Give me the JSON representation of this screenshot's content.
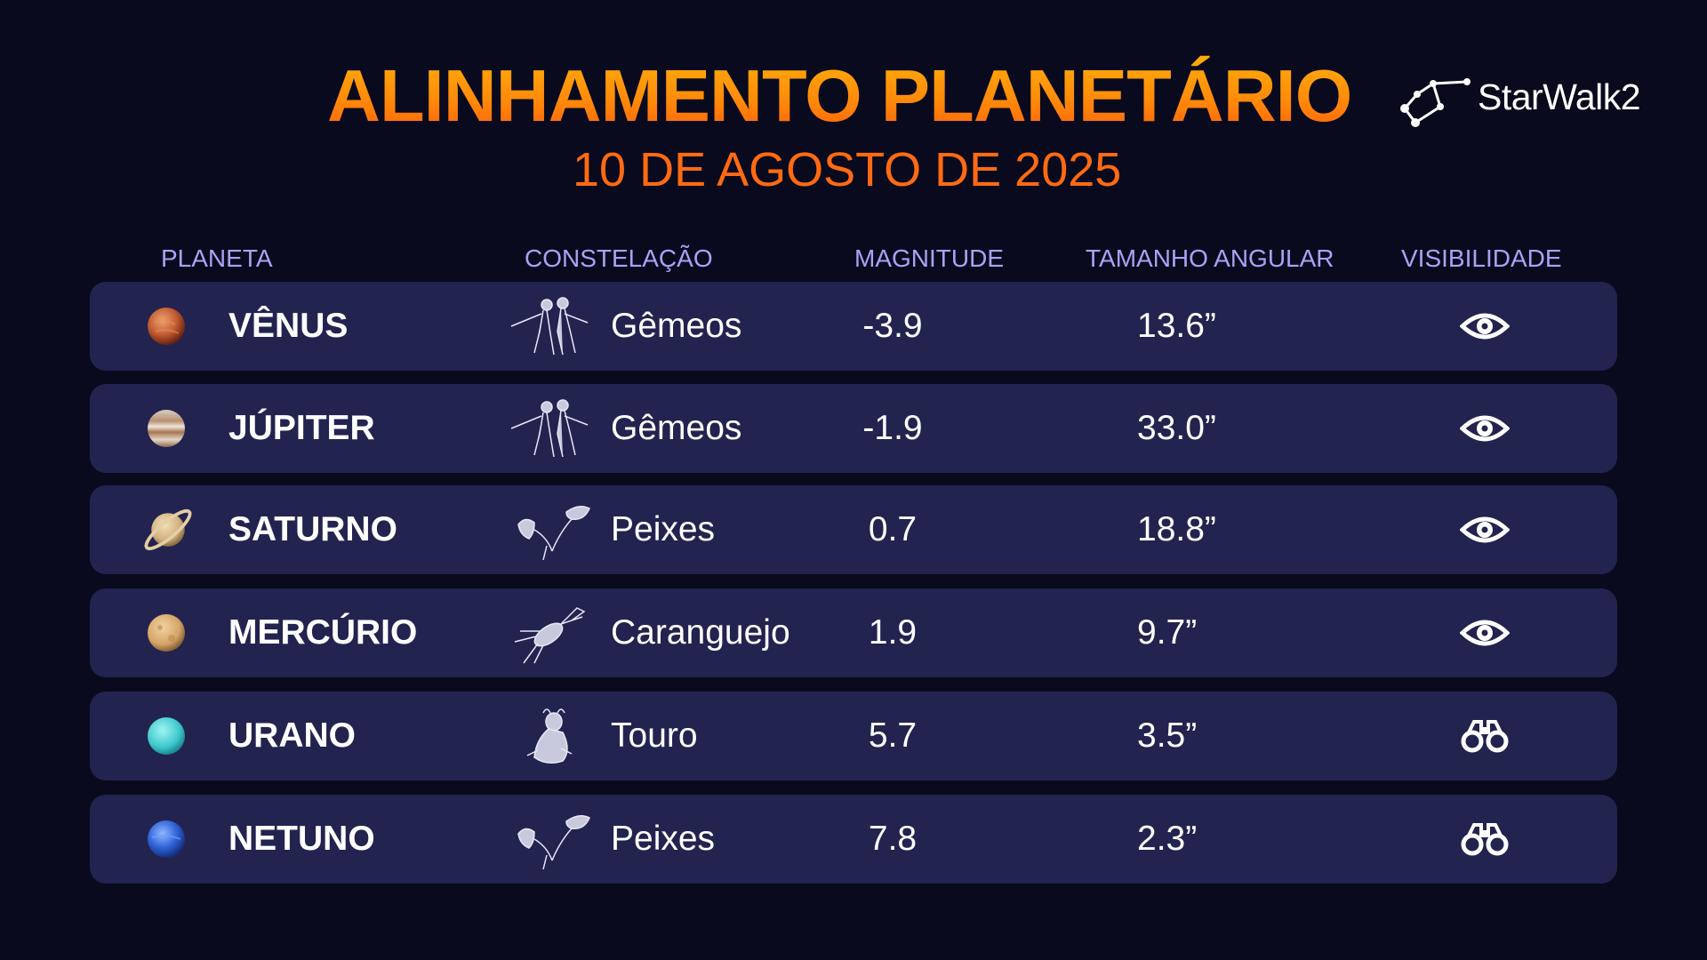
{
  "header": {
    "title": "ALINHAMENTO PLANETÁRIO",
    "subtitle": "10 DE AGOSTO DE 2025",
    "logo_text": "StarWalk2",
    "logo_icon": "constellation-icon"
  },
  "colors": {
    "background": "#0a0a1e",
    "row_background": "#232350",
    "title_orange": "#ff8a0a",
    "header_lavender": "#a8a3f5"
  },
  "table": {
    "columns": [
      "PLANETA",
      "CONSTELAÇÃO",
      "MAGNITUDE",
      "TAMANHO ANGULAR",
      "VISIBILIDADE"
    ],
    "rows": [
      {
        "planet": "VÊNUS",
        "planet_icon": "venus-icon",
        "constellation": "Gêmeos",
        "constellation_icon": "gemini-icon",
        "magnitude": "-3.9",
        "angular_size": "13.6”",
        "visibility": "eye-icon"
      },
      {
        "planet": "JÚPITER",
        "planet_icon": "jupiter-icon",
        "constellation": "Gêmeos",
        "constellation_icon": "gemini-icon",
        "magnitude": "-1.9",
        "angular_size": "33.0”",
        "visibility": "eye-icon"
      },
      {
        "planet": "SATURNO",
        "planet_icon": "saturn-icon",
        "constellation": "Peixes",
        "constellation_icon": "pisces-icon",
        "magnitude": "0.7",
        "angular_size": "18.8”",
        "visibility": "eye-icon"
      },
      {
        "planet": "MERCÚRIO",
        "planet_icon": "mercury-icon",
        "constellation": "Caranguejo",
        "constellation_icon": "cancer-icon",
        "magnitude": "1.9",
        "angular_size": "9.7”",
        "visibility": "eye-icon"
      },
      {
        "planet": "URANO",
        "planet_icon": "uranus-icon",
        "constellation": "Touro",
        "constellation_icon": "taurus-icon",
        "magnitude": "5.7",
        "angular_size": "3.5”",
        "visibility": "binoculars-icon"
      },
      {
        "planet": "NETUNO",
        "planet_icon": "neptune-icon",
        "constellation": "Peixes",
        "constellation_icon": "pisces-icon",
        "magnitude": "7.8",
        "angular_size": "2.3”",
        "visibility": "binoculars-icon"
      }
    ]
  }
}
